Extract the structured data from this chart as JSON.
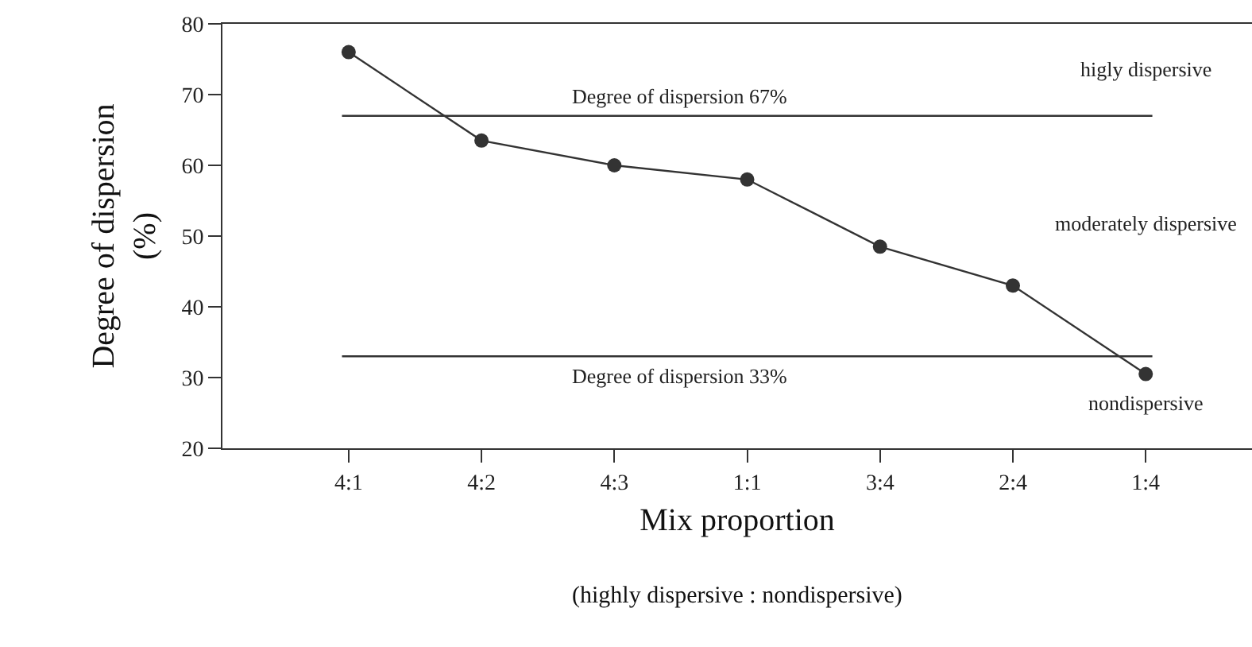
{
  "chart_data": {
    "type": "line",
    "xlabel": "Mix proportion",
    "ylabel": "Degree of dispersion (%)",
    "annotations": [
      "(highly dispersive : nondispersive)",
      "higly dispersive",
      "moderately dispersive",
      "nondispersive"
    ],
    "categories": [
      "4:1",
      "4:2",
      "4:3",
      "1:1",
      "3:4",
      "2:4",
      "1:4"
    ],
    "series": [
      {
        "color": "#333333",
        "values": [
          76,
          63.5,
          60,
          58,
          48.5,
          43,
          30.5
        ]
      }
    ],
    "ylim": [
      20,
      80
    ],
    "yticks": [
      20,
      30,
      40,
      50,
      60,
      70,
      80
    ],
    "ref_lines": [
      {
        "axis": "y",
        "value": 67,
        "label": "Degree of dispersion 67%",
        "color": "#333333"
      },
      {
        "axis": "y",
        "value": 33,
        "label": "Degree of dispersion 33%",
        "color": "#333333"
      }
    ],
    "marker": "circle",
    "line_style": "solid"
  }
}
